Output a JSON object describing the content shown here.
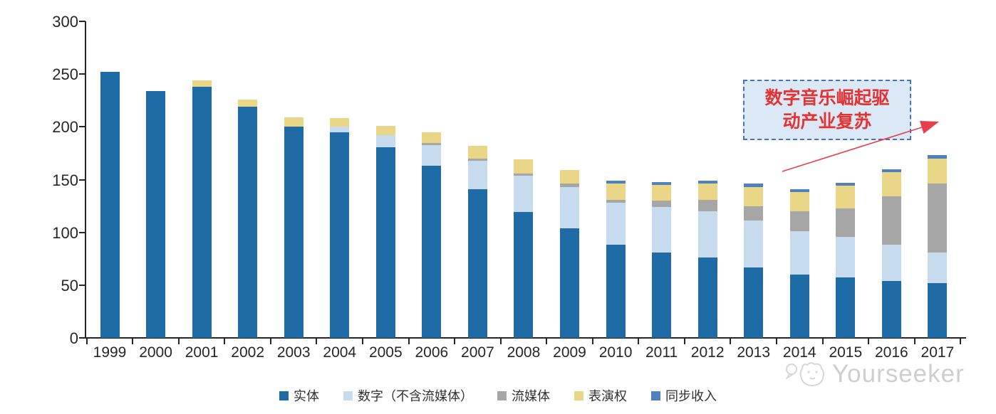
{
  "page": {
    "background": "#ffffff"
  },
  "annotation": {
    "line1": "数字音乐崛起驱",
    "line2": "动产业复苏",
    "box_fill": "#DBE8F6",
    "border_color": "#4472C4",
    "text_color": "#E53333",
    "arrow_color": "#E8404A"
  },
  "watermark": {
    "text": "Yourseeker",
    "color": "#C6C6C6",
    "logo": "cat-chat-logo-icon"
  },
  "chart_data": {
    "type": "bar",
    "stacked": true,
    "title": "",
    "xlabel": "",
    "ylabel": "",
    "categories": [
      "1999",
      "2000",
      "2001",
      "2002",
      "2003",
      "2004",
      "2005",
      "2006",
      "2007",
      "2008",
      "2009",
      "2010",
      "2011",
      "2012",
      "2013",
      "2014",
      "2015",
      "2016",
      "2017"
    ],
    "series": [
      {
        "name": "实体",
        "color": "#1F6BA5",
        "values": [
          252,
          234,
          238,
          219,
          200,
          195,
          181,
          163,
          141,
          119,
          104,
          88,
          81,
          76,
          67,
          60,
          57,
          54,
          52
        ]
      },
      {
        "name": "数字（不含流媒体）",
        "color": "#C7DBEF",
        "values": [
          0,
          0,
          0,
          0,
          0,
          5,
          11,
          20,
          27,
          35,
          39,
          40,
          43,
          44,
          44,
          41,
          39,
          34,
          29
        ]
      },
      {
        "name": "流媒体",
        "color": "#A6A6A6",
        "values": [
          0,
          0,
          0,
          0,
          0,
          0,
          0,
          2,
          2,
          2,
          3,
          3,
          6,
          11,
          14,
          19,
          27,
          46,
          65
        ]
      },
      {
        "name": "表演权",
        "color": "#EAD687",
        "values": [
          0,
          0,
          6,
          7,
          9,
          8,
          9,
          10,
          12,
          13,
          13,
          15,
          15,
          15,
          18,
          18,
          21,
          23,
          24
        ]
      },
      {
        "name": "同步收入",
        "color": "#4E81BD",
        "values": [
          0,
          0,
          0,
          0,
          0,
          0,
          0,
          0,
          0,
          0,
          0,
          3,
          3,
          3,
          3,
          3,
          3,
          3,
          3
        ]
      }
    ],
    "totals": [
      252,
      234,
      244,
      226,
      209,
      208,
      201,
      195,
      182,
      169,
      159,
      149,
      148,
      149,
      146,
      141,
      147,
      160,
      173
    ],
    "ylim": [
      0,
      300
    ],
    "yticks": [
      0,
      50,
      100,
      150,
      200,
      250,
      300
    ],
    "grid": false,
    "legend_position": "bottom",
    "axis_color": "#262626"
  }
}
